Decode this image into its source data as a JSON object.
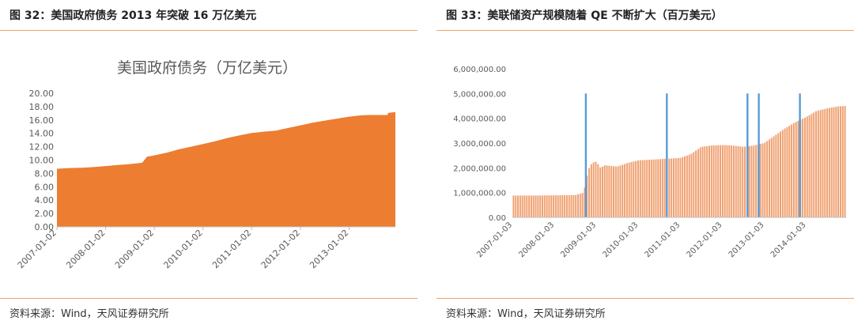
{
  "charts": [
    {
      "figure_title": "图 32：美国政府债务 2013 年突破 16 万亿美元",
      "source": "资料来源：Wind，天风证券研究所",
      "chart_data": {
        "type": "area",
        "title": "美国政府债务（万亿美元）",
        "color": "#ed7d31",
        "ylim": [
          0,
          20
        ],
        "yticks": [
          "0.00",
          "2.00",
          "4.00",
          "6.00",
          "8.00",
          "10.00",
          "12.00",
          "14.00",
          "16.00",
          "18.00",
          "20.00"
        ],
        "xticks": [
          "2007-01-02",
          "2008-01-02",
          "2009-01-02",
          "2010-01-02",
          "2011-01-02",
          "2012-01-02",
          "2013-01-02"
        ],
        "x": [
          2007.0,
          2007.25,
          2007.5,
          2007.75,
          2008.0,
          2008.25,
          2008.5,
          2008.75,
          2008.85,
          2009.0,
          2009.25,
          2009.5,
          2009.75,
          2010.0,
          2010.25,
          2010.5,
          2010.75,
          2011.0,
          2011.25,
          2011.5,
          2011.75,
          2012.0,
          2012.25,
          2012.5,
          2012.75,
          2013.0,
          2013.25,
          2013.4,
          2013.75,
          2013.79,
          2013.8,
          2013.95
        ],
        "values": [
          8.7,
          8.8,
          8.85,
          8.95,
          9.1,
          9.25,
          9.4,
          9.6,
          10.5,
          10.7,
          11.1,
          11.6,
          12.0,
          12.4,
          12.8,
          13.3,
          13.7,
          14.05,
          14.25,
          14.4,
          14.8,
          15.2,
          15.6,
          15.9,
          16.2,
          16.5,
          16.7,
          16.75,
          16.75,
          16.75,
          17.05,
          17.2
        ]
      }
    },
    {
      "figure_title": "图 33：美联储资产规模随着 QE 不断扩大（百万美元）",
      "source": "资料来源：Wind，天风证券研究所",
      "chart_data": {
        "type": "bar",
        "bar_color": "#f0a070",
        "marker_color": "#5b9bd5",
        "ylim": [
          0,
          6000000
        ],
        "yticks": [
          "0.00",
          "1,000,000.00",
          "2,000,000.00",
          "3,000,000.00",
          "4,000,000.00",
          "5,000,000.00",
          "6,000,000.00"
        ],
        "xticks": [
          "2007-01-03",
          "2008-01-03",
          "2009-01-03",
          "2010-01-03",
          "2011-01-03",
          "2012-01-03",
          "2013-01-03",
          "2014-01-03"
        ],
        "x": [
          2007.0,
          2007.5,
          2008.0,
          2008.5,
          2008.7,
          2008.8,
          2008.9,
          2009.0,
          2009.1,
          2009.2,
          2009.5,
          2009.75,
          2010.0,
          2010.5,
          2011.0,
          2011.25,
          2011.5,
          2011.75,
          2012.0,
          2012.25,
          2012.5,
          2012.75,
          2013.0,
          2013.25,
          2013.5,
          2013.75,
          2014.0,
          2014.25,
          2014.5,
          2014.75,
          2014.95
        ],
        "values": [
          880000,
          880000,
          890000,
          900000,
          1000000,
          1900000,
          2200000,
          2250000,
          2000000,
          2100000,
          2050000,
          2200000,
          2300000,
          2350000,
          2400000,
          2550000,
          2850000,
          2900000,
          2920000,
          2900000,
          2850000,
          2900000,
          3000000,
          3300000,
          3600000,
          3850000,
          4050000,
          4300000,
          4400000,
          4480000,
          4500000
        ],
        "markers": [
          2008.75,
          2010.68,
          2012.6,
          2012.87,
          2013.85
        ],
        "marker_value": 5000000
      }
    }
  ]
}
